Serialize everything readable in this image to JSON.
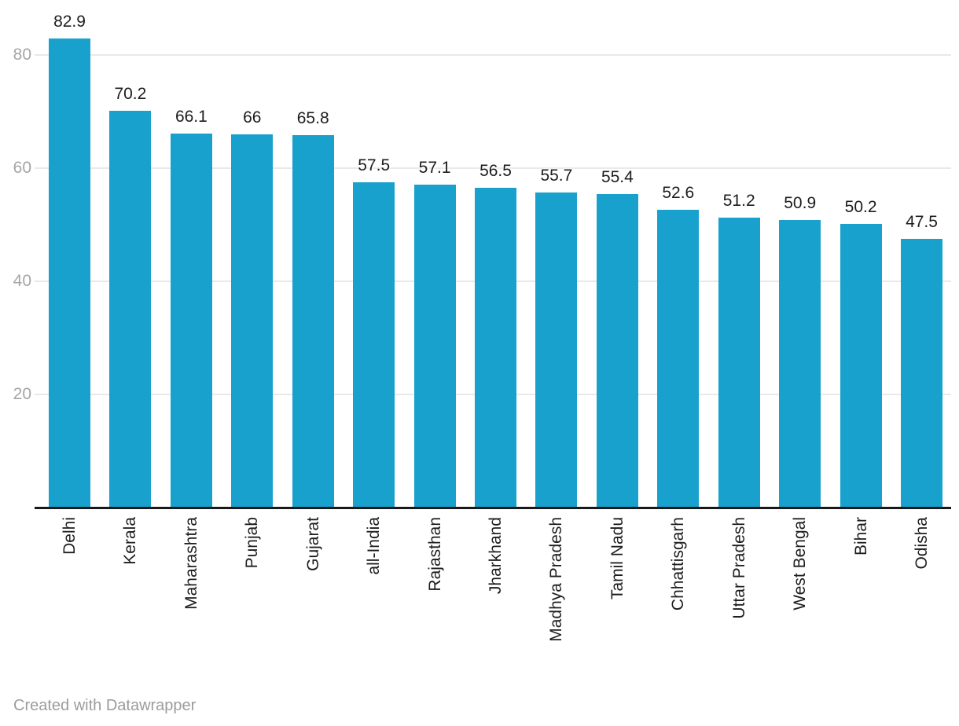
{
  "chart": {
    "footer": "Created with Datawrapper"
  },
  "chart_data": {
    "type": "bar",
    "title": "",
    "xlabel": "",
    "ylabel": "",
    "categories": [
      "Delhi",
      "Kerala",
      "Maharashtra",
      "Punjab",
      "Gujarat",
      "all-India",
      "Rajasthan",
      "Jharkhand",
      "Madhya Pradesh",
      "Tamil Nadu",
      "Chhattisgarh",
      "Uttar Pradesh",
      "West Bengal",
      "Bihar",
      "Odisha"
    ],
    "values": [
      82.9,
      70.2,
      66.1,
      66,
      65.8,
      57.5,
      57.1,
      56.5,
      55.7,
      55.4,
      52.6,
      51.2,
      50.9,
      50.2,
      47.5
    ],
    "value_labels": [
      "82.9",
      "70.2",
      "66.1",
      "66",
      "65.8",
      "57.5",
      "57.1",
      "56.5",
      "55.7",
      "55.4",
      "52.6",
      "51.2",
      "50.9",
      "50.2",
      "47.5"
    ],
    "y_ticks": [
      20,
      40,
      60,
      80
    ],
    "ylim": [
      0,
      90
    ],
    "grid": true,
    "legend": false,
    "category_labels_rotated": true,
    "colors": {
      "bar": "#18a1cd",
      "grid_line": "#e9e9e9",
      "axis_line": "#191919",
      "tick_label": "#a5a5a5",
      "value_label": "#1d1d1d",
      "category_label": "#1d1d1d",
      "footer_text": "#9c9c9c",
      "background": "#ffffff"
    }
  }
}
